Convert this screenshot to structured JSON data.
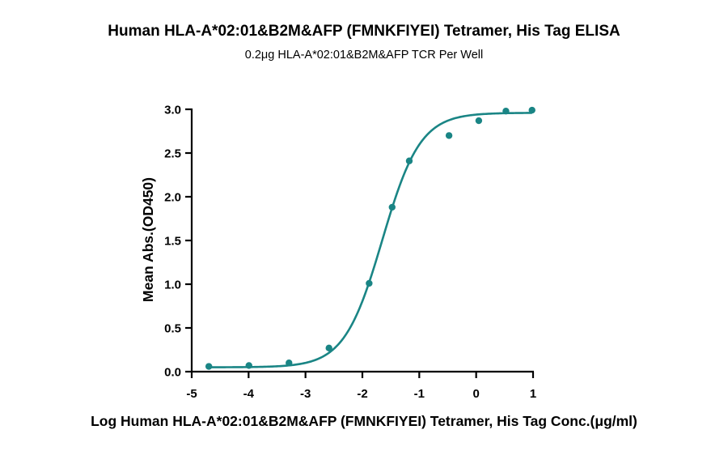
{
  "chart_data": {
    "type": "scatter",
    "title": "Human HLA-A*02:01&B2M&AFP (FMNKFIYEI) Tetramer, His Tag ELISA",
    "subtitle": "0.2μg HLA-A*02:01&B2M&AFP TCR Per Well",
    "xlabel": "Log Human HLA-A*02:01&B2M&AFP (FMNKFIYEI) Tetramer, His Tag Conc.(μg/ml)",
    "ylabel": "Mean Abs.(OD450)",
    "xlim": [
      -5,
      1
    ],
    "ylim": [
      0,
      3
    ],
    "xticks": [
      -5,
      -4,
      -3,
      -2,
      -1,
      0,
      1
    ],
    "xtick_labels": [
      "-5",
      "-4",
      "-3",
      "-2",
      "-1",
      "0",
      "1"
    ],
    "yticks": [
      0,
      0.5,
      1,
      1.5,
      2,
      2.5,
      3
    ],
    "ytick_labels": [
      "0.0",
      "0.5",
      "1.0",
      "1.5",
      "2.0",
      "2.5",
      "3.0"
    ],
    "color": "#1a8585",
    "grid": false,
    "legend": "none",
    "series": [
      {
        "points": [
          {
            "x": -4.699,
            "y": 0.06
          },
          {
            "x": -3.994,
            "y": 0.07
          },
          {
            "x": -3.29,
            "y": 0.1
          },
          {
            "x": -2.587,
            "y": 0.27
          },
          {
            "x": -1.881,
            "y": 1.01
          },
          {
            "x": -1.477,
            "y": 1.88
          },
          {
            "x": -1.176,
            "y": 2.41
          },
          {
            "x": -0.477,
            "y": 2.7
          },
          {
            "x": 0.046,
            "y": 2.87
          },
          {
            "x": 0.523,
            "y": 2.98
          },
          {
            "x": 0.982,
            "y": 2.99
          }
        ]
      }
    ],
    "fit": {
      "model": "four-parameter logistic",
      "bottom": 0.05,
      "top": 2.96,
      "log_ec50": -1.65,
      "hill_slope": 1.3,
      "x_range": [
        -4.699,
        0.982
      ]
    }
  }
}
